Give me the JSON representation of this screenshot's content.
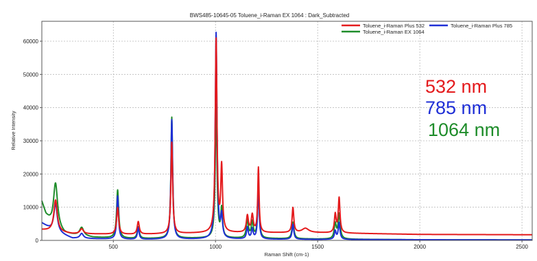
{
  "chart_data": {
    "type": "line",
    "title": "BWS485-10645-05  Toluene_i-Raman EX 1064 : Dark_Subtracted",
    "xlabel": "Raman Shift (cm-1)",
    "ylabel": "Relative Intensity",
    "xlim": [
      150,
      2550
    ],
    "ylim": [
      0,
      66000
    ],
    "x_ticks": [
      500,
      1000,
      1500,
      2000,
      2500
    ],
    "y_ticks": [
      0,
      10000,
      20000,
      30000,
      40000,
      50000,
      60000
    ],
    "grid": true,
    "legend_position": "top-right",
    "legend": [
      "Toluene_i-Raman Plus 532",
      "Toluene_i-Raman Plus 785",
      "Toluene_i-Raman EX 1064"
    ],
    "annotations": [
      "532 nm",
      "785 nm",
      "1064 nm"
    ],
    "series": [
      {
        "name": "Toluene_i-Raman Plus 532",
        "color": "#e41a1c",
        "baseline": [
          [
            150,
            3200
          ],
          [
            300,
            2000
          ],
          [
            600,
            1800
          ],
          [
            1000,
            2300
          ],
          [
            1500,
            2300
          ],
          [
            2000,
            1800
          ],
          [
            2550,
            1700
          ]
        ],
        "peaks": [
          [
            217,
            9500,
            10
          ],
          [
            345,
            1500,
            10
          ],
          [
            521,
            8000,
            6
          ],
          [
            622,
            3800,
            6
          ],
          [
            786,
            27500,
            5
          ],
          [
            1003,
            58000,
            5
          ],
          [
            1030,
            19500,
            5
          ],
          [
            1156,
            5000,
            6
          ],
          [
            1180,
            5200,
            6
          ],
          [
            1210,
            19500,
            4
          ],
          [
            1379,
            7500,
            5
          ],
          [
            1440,
            1300,
            20
          ],
          [
            1586,
            5500,
            5
          ],
          [
            1605,
            10500,
            5
          ]
        ]
      },
      {
        "name": "Toluene_i-Raman Plus 785",
        "color": "#1f2fd6",
        "baseline": [
          [
            150,
            5200
          ],
          [
            200,
            3000
          ],
          [
            300,
            600
          ],
          [
            600,
            300
          ],
          [
            1000,
            400
          ],
          [
            1500,
            300
          ],
          [
            2000,
            200
          ],
          [
            2550,
            150
          ]
        ],
        "peaks": [
          [
            217,
            8500,
            10
          ],
          [
            345,
            1500,
            10
          ],
          [
            521,
            13000,
            5
          ],
          [
            622,
            3500,
            5
          ],
          [
            786,
            36000,
            5
          ],
          [
            1003,
            62000,
            5
          ],
          [
            1030,
            6500,
            5
          ],
          [
            1156,
            3500,
            5
          ],
          [
            1180,
            3000,
            5
          ],
          [
            1210,
            17500,
            4
          ],
          [
            1379,
            4500,
            5
          ],
          [
            1586,
            2500,
            5
          ],
          [
            1605,
            5000,
            5
          ]
        ]
      },
      {
        "name": "Toluene_i-Raman EX 1064",
        "color": "#1e8c2a",
        "baseline": [
          [
            150,
            11500
          ],
          [
            170,
            7500
          ],
          [
            200,
            4500
          ],
          [
            260,
            2000
          ],
          [
            400,
            900
          ],
          [
            600,
            500
          ],
          [
            1000,
            700
          ],
          [
            1500,
            400
          ],
          [
            2000,
            200
          ],
          [
            2550,
            150
          ]
        ],
        "peaks": [
          [
            217,
            13500,
            12
          ],
          [
            345,
            2500,
            12
          ],
          [
            521,
            14500,
            6
          ],
          [
            622,
            3500,
            6
          ],
          [
            786,
            36500,
            5
          ],
          [
            1003,
            40000,
            5
          ],
          [
            1030,
            8500,
            5
          ],
          [
            1156,
            5500,
            6
          ],
          [
            1180,
            4800,
            6
          ],
          [
            1210,
            14000,
            5
          ],
          [
            1379,
            5000,
            6
          ],
          [
            1586,
            4500,
            6
          ],
          [
            1605,
            7500,
            6
          ]
        ]
      }
    ]
  }
}
